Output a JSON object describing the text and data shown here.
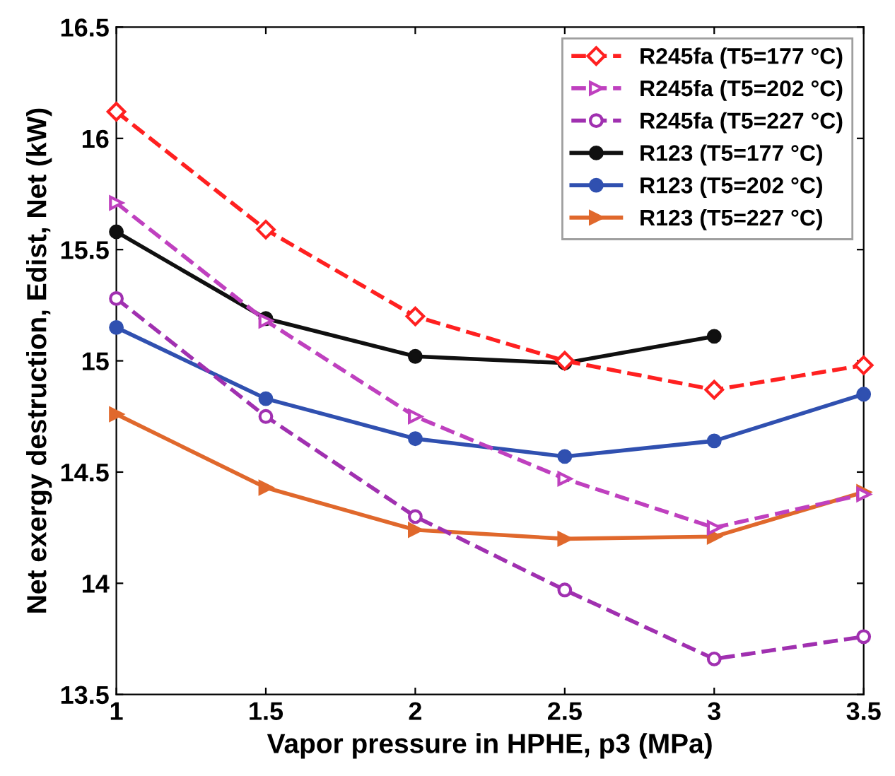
{
  "chart_data": {
    "type": "line",
    "xlabel": "Vapor pressure in HPHE, p3 (MPa)",
    "ylabel": "Net exergy destruction, Edist, Net (kW)",
    "x": [
      1,
      1.5,
      2,
      2.5,
      3,
      3.5
    ],
    "series": [
      {
        "name": "R245fa (T5=177 °C)",
        "color": "#ff2020",
        "marker": "diamond",
        "line_style": "dashed",
        "values": [
          16.12,
          15.59,
          15.2,
          15.0,
          14.87,
          14.98
        ]
      },
      {
        "name": "R245fa (T5=202 °C)",
        "color": "#bf40bf",
        "marker": "triangle",
        "line_style": "dashed",
        "values": [
          15.71,
          15.18,
          14.75,
          14.47,
          14.25,
          14.4
        ]
      },
      {
        "name": "R245fa (T5=227 °C)",
        "color": "#a030b0",
        "marker": "circle",
        "line_style": "dashed",
        "values": [
          15.28,
          14.75,
          14.3,
          13.97,
          13.66,
          13.76
        ]
      },
      {
        "name": "R123 (T5=177 °C)",
        "color": "#101010",
        "marker": "circle",
        "line_style": "solid",
        "values": [
          15.58,
          15.19,
          15.02,
          14.99,
          15.11,
          null
        ]
      },
      {
        "name": "R123 (T5=202 °C)",
        "color": "#3050b0",
        "marker": "circle",
        "line_style": "solid",
        "values": [
          15.15,
          14.83,
          14.65,
          14.57,
          14.64,
          14.85
        ]
      },
      {
        "name": "R123 (T5=227 °C)",
        "color": "#e0682c",
        "marker": "triangle",
        "line_style": "solid",
        "values": [
          14.76,
          14.43,
          14.24,
          14.2,
          14.21,
          14.41
        ]
      }
    ],
    "xlim": [
      1,
      3.5
    ],
    "xticks": [
      1,
      1.5,
      2,
      2.5,
      3,
      3.5
    ],
    "ylim": [
      13.5,
      16.5
    ],
    "yticks": [
      13.5,
      14,
      14.5,
      15,
      15.5,
      16,
      16.5
    ],
    "grid": false,
    "legend": "top right"
  }
}
